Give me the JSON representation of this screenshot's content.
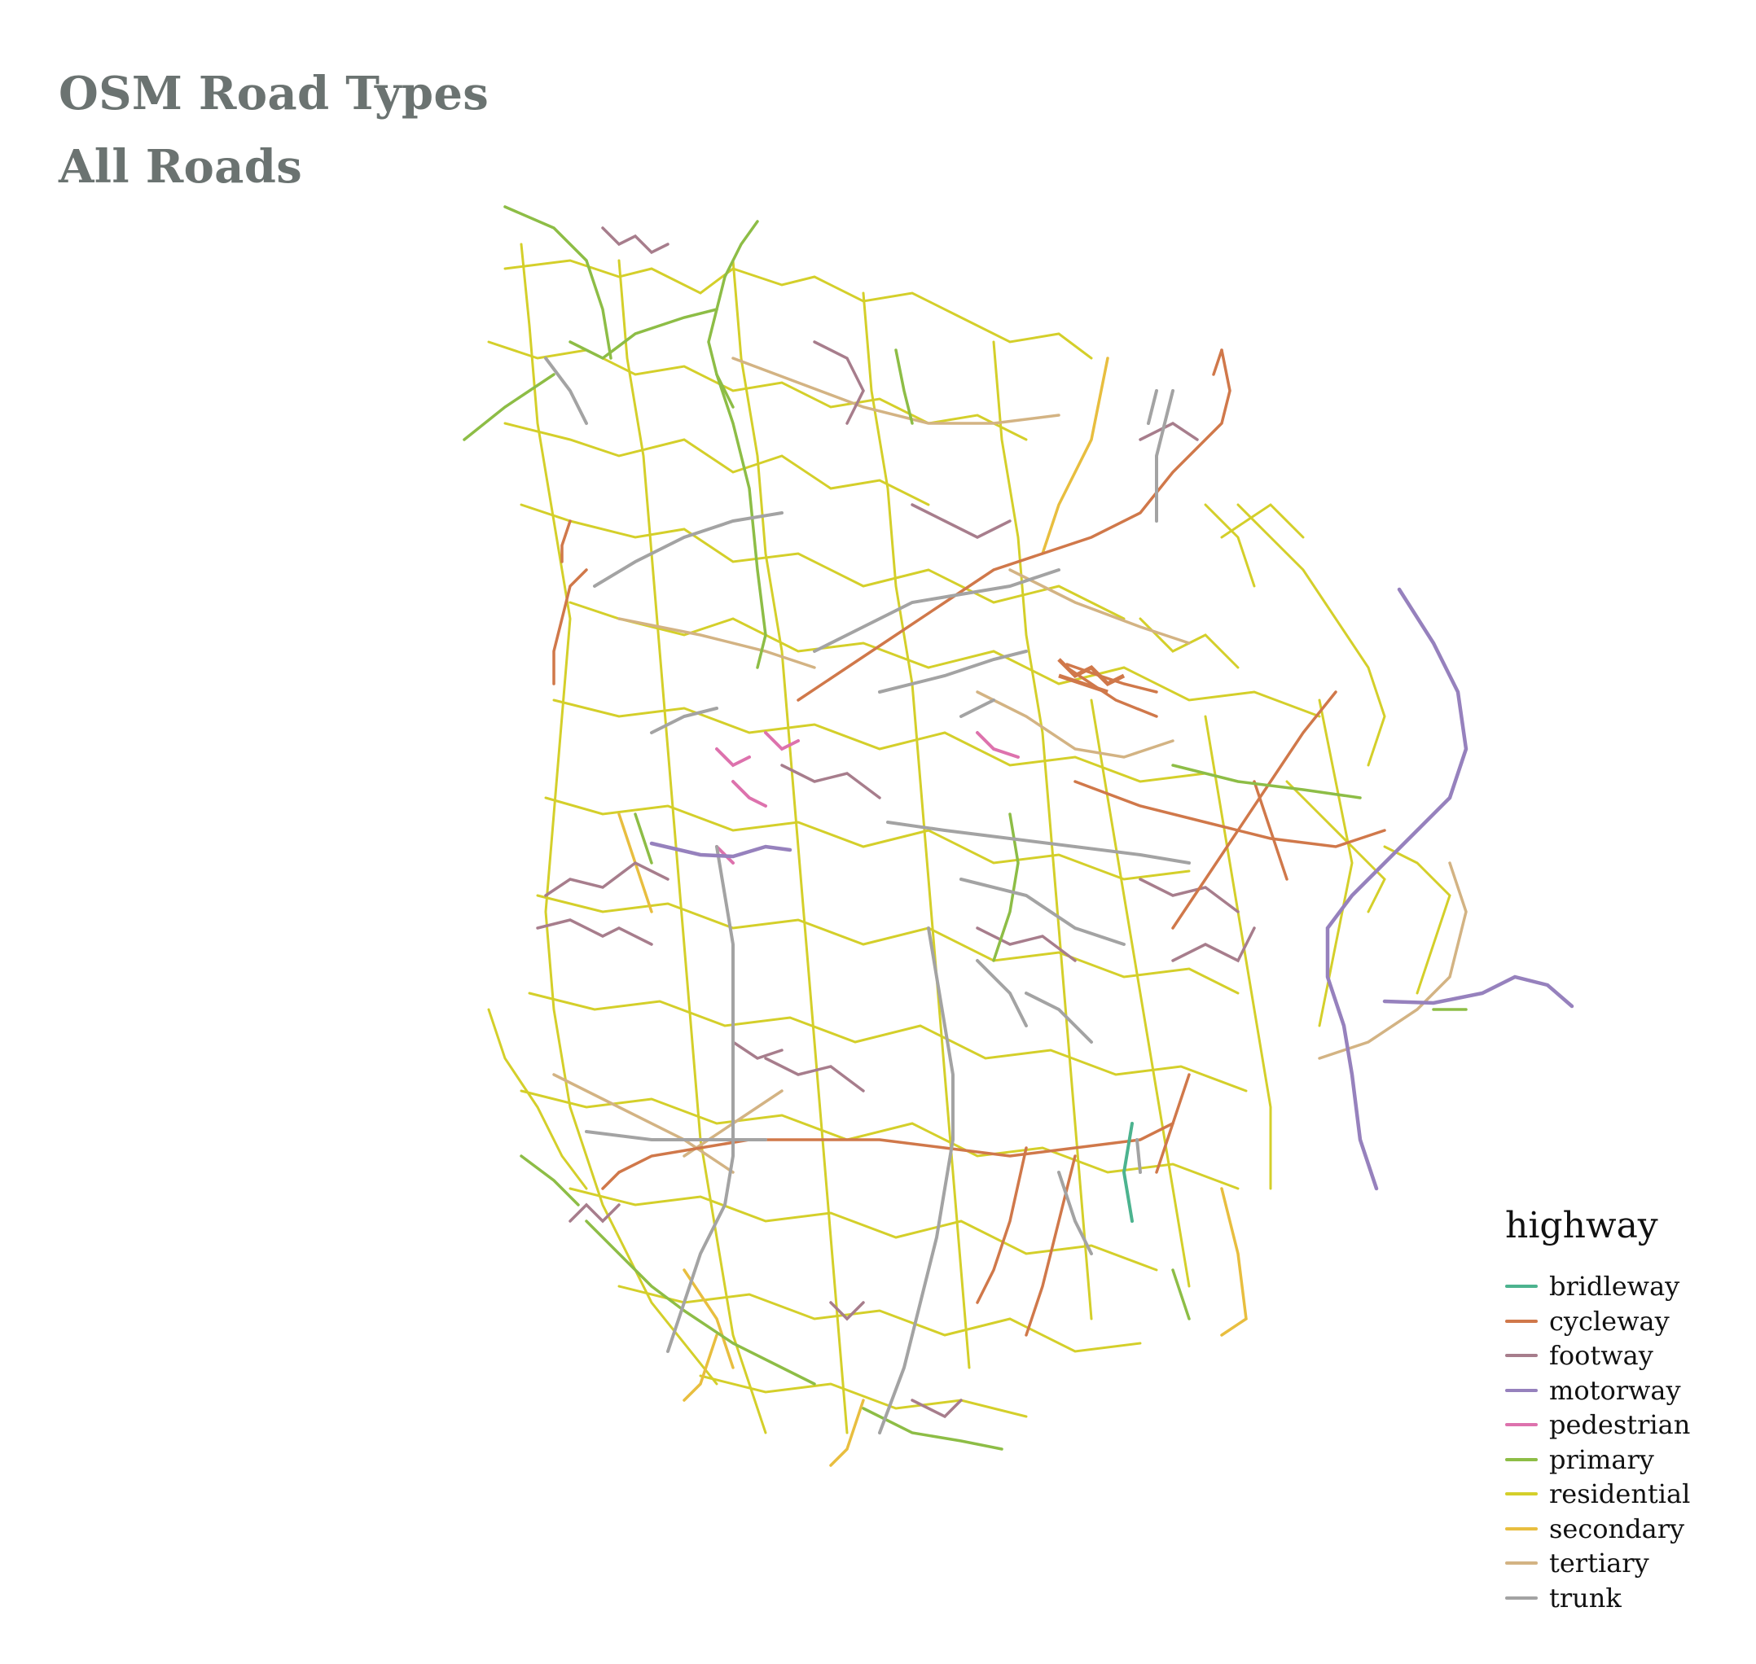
{
  "title": "OSM Road Types",
  "subtitle": "All Roads",
  "legend": {
    "title": "highway",
    "items": [
      {
        "label": "bridleway",
        "color": "#4cb38f"
      },
      {
        "label": "cycleway",
        "color": "#d0784a"
      },
      {
        "label": "footway",
        "color": "#a77d8c"
      },
      {
        "label": "motorway",
        "color": "#9681bd"
      },
      {
        "label": "pedestrian",
        "color": "#dd72ad"
      },
      {
        "label": "primary",
        "color": "#8dbd46"
      },
      {
        "label": "residential",
        "color": "#d4cf2a"
      },
      {
        "label": "secondary",
        "color": "#e8be3f"
      },
      {
        "label": "tertiary",
        "color": "#d3b383"
      },
      {
        "label": "trunk",
        "color": "#a3a3a3"
      }
    ]
  },
  "map": {
    "background": "#ffffff"
  }
}
